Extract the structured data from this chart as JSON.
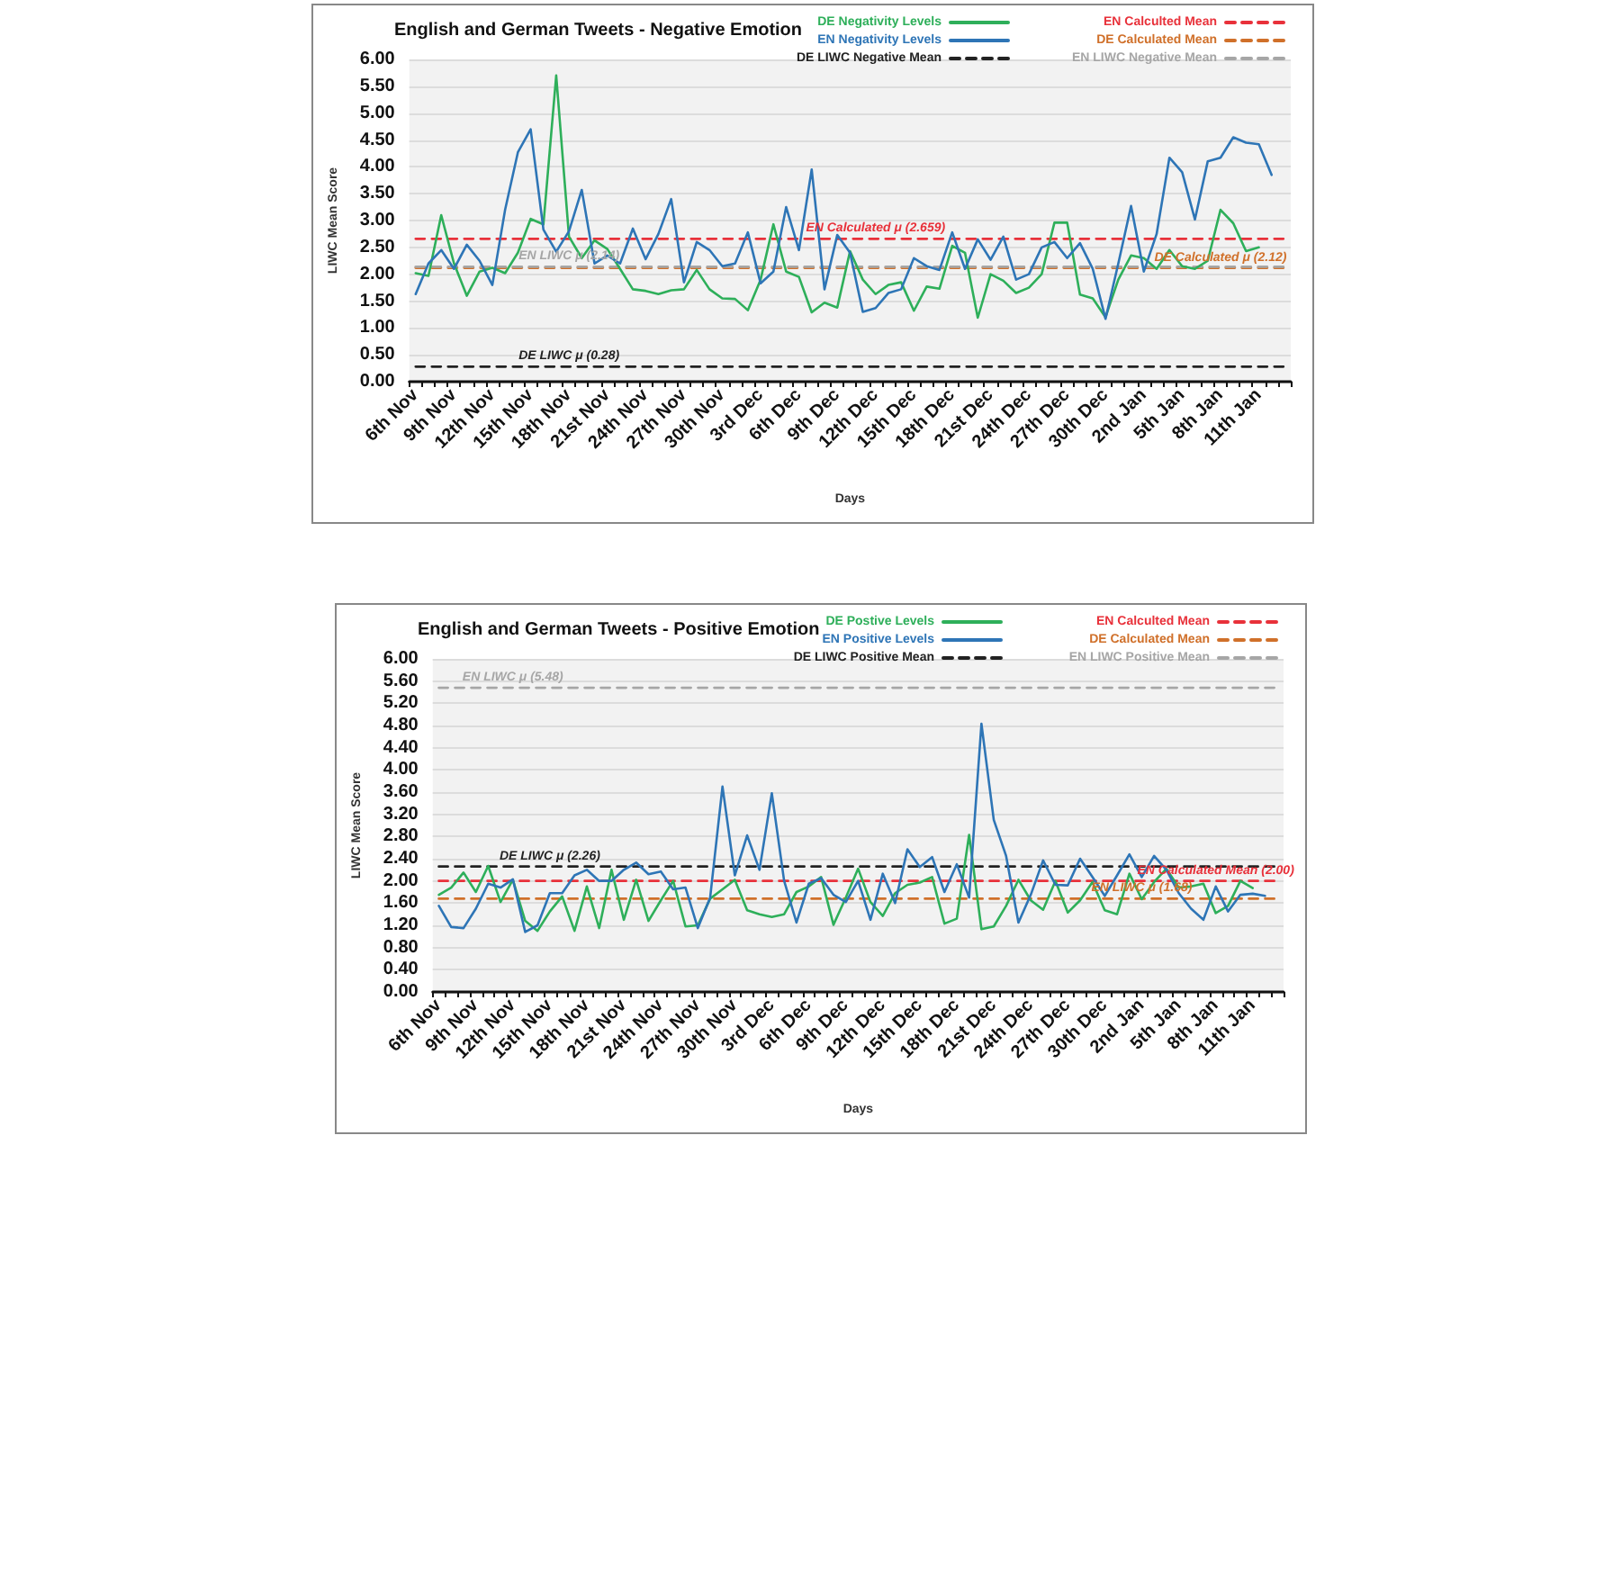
{
  "chart_data": [
    {
      "type": "line",
      "title": "English and German Tweets - Negative Emotion",
      "xlabel": "Days",
      "ylabel": "LIWC Mean Score",
      "categories": [
        "6th Nov",
        null,
        null,
        "9th Nov",
        null,
        null,
        "12th Nov",
        null,
        null,
        "15th Nov",
        null,
        null,
        "18th Nov",
        null,
        null,
        "21st Nov",
        null,
        null,
        "24th Nov",
        null,
        null,
        "27th Nov",
        null,
        null,
        "30th Nov",
        null,
        null,
        "3rd Dec",
        null,
        null,
        "6th Dec",
        null,
        null,
        "9th Dec",
        null,
        null,
        "12th Dec",
        null,
        null,
        "15th Dec",
        null,
        null,
        "18th Dec",
        null,
        null,
        "21st Dec",
        null,
        null,
        "24th Dec",
        null,
        null,
        "27th Dec",
        null,
        null,
        "30th Dec",
        null,
        null,
        "2nd Jan",
        null,
        null,
        "5th Jan",
        null,
        null,
        "8th Jan",
        null,
        null,
        "11th Jan",
        null,
        null
      ],
      "ylim": [
        0,
        6
      ],
      "yticks": [
        {
          "value": 0,
          "label": "0.00"
        },
        {
          "value": 0.5,
          "label": "0.50"
        },
        {
          "value": 1,
          "label": "1.00"
        },
        {
          "value": 1.5,
          "label": "1.50"
        },
        {
          "value": 2,
          "label": "2.00"
        },
        {
          "value": 2.5,
          "label": "2.50"
        },
        {
          "value": 3,
          "label": "3.00"
        },
        {
          "value": 3.5,
          "label": "3.50"
        },
        {
          "value": 4,
          "label": "4.00"
        },
        {
          "value": 4.5,
          "label": "4.50"
        },
        {
          "value": 5,
          "label": "5.00"
        },
        {
          "value": 5.5,
          "label": "5.50"
        },
        {
          "value": 6,
          "label": "6.00"
        }
      ],
      "grid": "y",
      "legend": "top",
      "marker": "none",
      "series": [
        {
          "name": "DE Negativity Levels",
          "color": "#2eaf5a",
          "line_style": "solid",
          "values": [
            2.02,
            1.97,
            3.1,
            2.2,
            1.6,
            2.05,
            2.12,
            2.02,
            2.4,
            3.03,
            2.93,
            5.7,
            2.7,
            2.3,
            2.63,
            2.47,
            2.1,
            1.72,
            1.69,
            1.63,
            1.7,
            1.72,
            2.08,
            1.72,
            1.55,
            1.54,
            1.33,
            1.9,
            2.93,
            2.05,
            1.95,
            1.29,
            1.47,
            1.38,
            2.43,
            1.9,
            1.63,
            1.8,
            1.85,
            1.32,
            1.77,
            1.73,
            2.53,
            2.4,
            1.19,
            2.0,
            1.88,
            1.65,
            1.75,
            2.0,
            2.96,
            2.96,
            1.62,
            1.55,
            1.2,
            1.9,
            2.35,
            2.3,
            2.1,
            2.45,
            2.15,
            2.1,
            2.25,
            3.2,
            2.95,
            2.43,
            2.5,
            null,
            null
          ]
        },
        {
          "name": "EN Negativity Levels",
          "color": "#2e75b6",
          "line_style": "solid",
          "values": [
            1.63,
            2.2,
            2.45,
            2.1,
            2.55,
            2.25,
            1.8,
            3.2,
            4.27,
            4.7,
            2.83,
            2.42,
            2.8,
            3.57,
            2.2,
            2.35,
            2.2,
            2.85,
            2.28,
            2.75,
            3.4,
            1.85,
            2.6,
            2.45,
            2.15,
            2.2,
            2.78,
            1.83,
            2.05,
            3.25,
            2.45,
            3.95,
            1.72,
            2.73,
            2.4,
            1.3,
            1.37,
            1.65,
            1.72,
            2.3,
            2.15,
            2.08,
            2.78,
            2.1,
            2.65,
            2.27,
            2.7,
            1.9,
            2.0,
            2.5,
            2.6,
            2.3,
            2.58,
            2.1,
            1.17,
            2.2,
            3.27,
            2.05,
            2.75,
            4.17,
            3.9,
            3.02,
            4.1,
            4.17,
            4.55,
            4.45,
            4.42,
            3.85,
            null
          ]
        },
        {
          "name": "DE LIWC Negative Mean",
          "color": "#222222",
          "line_style": "dashed",
          "values": [
            0.28,
            0.28,
            0.28,
            0.28,
            0.28,
            0.28,
            0.28,
            0.28,
            0.28,
            0.28,
            0.28,
            0.28,
            0.28,
            0.28,
            0.28,
            0.28,
            0.28,
            0.28,
            0.28,
            0.28,
            0.28,
            0.28,
            0.28,
            0.28,
            0.28,
            0.28,
            0.28,
            0.28,
            0.28,
            0.28,
            0.28,
            0.28,
            0.28,
            0.28,
            0.28,
            0.28,
            0.28,
            0.28,
            0.28,
            0.28,
            0.28,
            0.28,
            0.28,
            0.28,
            0.28,
            0.28,
            0.28,
            0.28,
            0.28,
            0.28,
            0.28,
            0.28,
            0.28,
            0.28,
            0.28,
            0.28,
            0.28,
            0.28,
            0.28,
            0.28,
            0.28,
            0.28,
            0.28,
            0.28,
            0.28,
            0.28,
            0.28,
            0.28,
            0.28
          ]
        },
        {
          "name": "EN Calculted Mean",
          "color": "#e8313a",
          "line_style": "dashed",
          "values": [
            2.659,
            2.659,
            2.659,
            2.659,
            2.659,
            2.659,
            2.659,
            2.659,
            2.659,
            2.659,
            2.659,
            2.659,
            2.659,
            2.659,
            2.659,
            2.659,
            2.659,
            2.659,
            2.659,
            2.659,
            2.659,
            2.659,
            2.659,
            2.659,
            2.659,
            2.659,
            2.659,
            2.659,
            2.659,
            2.659,
            2.659,
            2.659,
            2.659,
            2.659,
            2.659,
            2.659,
            2.659,
            2.659,
            2.659,
            2.659,
            2.659,
            2.659,
            2.659,
            2.659,
            2.659,
            2.659,
            2.659,
            2.659,
            2.659,
            2.659,
            2.659,
            2.659,
            2.659,
            2.659,
            2.659,
            2.659,
            2.659,
            2.659,
            2.659,
            2.659,
            2.659,
            2.659,
            2.659,
            2.659,
            2.659,
            2.659,
            2.659,
            2.659,
            2.659
          ]
        },
        {
          "name": "DE Calculated Mean",
          "color": "#d0702a",
          "line_style": "dashed",
          "values": [
            2.12,
            2.12,
            2.12,
            2.12,
            2.12,
            2.12,
            2.12,
            2.12,
            2.12,
            2.12,
            2.12,
            2.12,
            2.12,
            2.12,
            2.12,
            2.12,
            2.12,
            2.12,
            2.12,
            2.12,
            2.12,
            2.12,
            2.12,
            2.12,
            2.12,
            2.12,
            2.12,
            2.12,
            2.12,
            2.12,
            2.12,
            2.12,
            2.12,
            2.12,
            2.12,
            2.12,
            2.12,
            2.12,
            2.12,
            2.12,
            2.12,
            2.12,
            2.12,
            2.12,
            2.12,
            2.12,
            2.12,
            2.12,
            2.12,
            2.12,
            2.12,
            2.12,
            2.12,
            2.12,
            2.12,
            2.12,
            2.12,
            2.12,
            2.12,
            2.12,
            2.12,
            2.12,
            2.12,
            2.12,
            2.12,
            2.12,
            2.12,
            2.12,
            2.12
          ]
        },
        {
          "name": "EN LIWC Negative Mean",
          "color": "#a6a6a6",
          "line_style": "dashed",
          "values": [
            2.14,
            2.14,
            2.14,
            2.14,
            2.14,
            2.14,
            2.14,
            2.14,
            2.14,
            2.14,
            2.14,
            2.14,
            2.14,
            2.14,
            2.14,
            2.14,
            2.14,
            2.14,
            2.14,
            2.14,
            2.14,
            2.14,
            2.14,
            2.14,
            2.14,
            2.14,
            2.14,
            2.14,
            2.14,
            2.14,
            2.14,
            2.14,
            2.14,
            2.14,
            2.14,
            2.14,
            2.14,
            2.14,
            2.14,
            2.14,
            2.14,
            2.14,
            2.14,
            2.14,
            2.14,
            2.14,
            2.14,
            2.14,
            2.14,
            2.14,
            2.14,
            2.14,
            2.14,
            2.14,
            2.14,
            2.14,
            2.14,
            2.14,
            2.14,
            2.14,
            2.14,
            2.14,
            2.14,
            2.14,
            2.14,
            2.14,
            2.14,
            2.14,
            2.14
          ]
        }
      ],
      "annotations": [
        {
          "text": "EN Calculated μ (2.659)",
          "x": "12th Dec",
          "y": 2.659
        },
        {
          "text": "EN LIWC μ (2.14)",
          "x": "18th Nov",
          "y": 2.14
        },
        {
          "text": "DE Calculated μ (2.12)",
          "x": "8th Jan",
          "y": 2.12
        },
        {
          "text": "DE LIWC μ (0.28)",
          "x": "18th Nov",
          "y": 0.28
        }
      ]
    },
    {
      "type": "line",
      "title": "English and German Tweets - Positive Emotion",
      "xlabel": "Days",
      "ylabel": "LIWC Mean Score",
      "categories": [
        "6th Nov",
        null,
        null,
        "9th Nov",
        null,
        null,
        "12th Nov",
        null,
        null,
        "15th Nov",
        null,
        null,
        "18th Nov",
        null,
        null,
        "21st Nov",
        null,
        null,
        "24th Nov",
        null,
        null,
        "27th Nov",
        null,
        null,
        "30th Nov",
        null,
        null,
        "3rd Dec",
        null,
        null,
        "6th Dec",
        null,
        null,
        "9th Dec",
        null,
        null,
        "12th Dec",
        null,
        null,
        "15th Dec",
        null,
        null,
        "18th Dec",
        null,
        null,
        "21st Dec",
        null,
        null,
        "24th Dec",
        null,
        null,
        "27th Dec",
        null,
        null,
        "30th Dec",
        null,
        null,
        "2nd Jan",
        null,
        null,
        "5th Jan",
        null,
        null,
        "8th Jan",
        null,
        null,
        "11th Jan",
        null,
        null
      ],
      "ylim": [
        0,
        6
      ],
      "yticks": [
        {
          "value": 0,
          "label": "0.00"
        },
        {
          "value": 0.4,
          "label": "0.40"
        },
        {
          "value": 0.8,
          "label": "0.80"
        },
        {
          "value": 1.2,
          "label": "1.20"
        },
        {
          "value": 1.6,
          "label": "1.60"
        },
        {
          "value": 2,
          "label": "2.00"
        },
        {
          "value": 2.4,
          "label": "2.40"
        },
        {
          "value": 2.8,
          "label": "2.80"
        },
        {
          "value": 3.2,
          "label": "3.20"
        },
        {
          "value": 3.6,
          "label": "3.60"
        },
        {
          "value": 4,
          "label": "4.00"
        },
        {
          "value": 4.4,
          "label": "4.40"
        },
        {
          "value": 4.8,
          "label": "4.80"
        },
        {
          "value": 5.2,
          "label": "5.20"
        },
        {
          "value": 5.6,
          "label": "5.60"
        },
        {
          "value": 6,
          "label": "6.00"
        }
      ],
      "grid": "y",
      "legend": "top",
      "marker": "none",
      "series": [
        {
          "name": "DE Postive Levels",
          "color": "#2eaf5a",
          "line_style": "solid",
          "values": [
            1.75,
            1.88,
            2.15,
            1.8,
            2.27,
            1.62,
            2.02,
            1.28,
            1.1,
            1.45,
            1.72,
            1.1,
            1.9,
            1.15,
            2.2,
            1.3,
            2.02,
            1.28,
            1.65,
            2.0,
            1.18,
            1.2,
            1.68,
            1.85,
            2.02,
            1.47,
            1.4,
            1.35,
            1.4,
            1.8,
            1.9,
            2.07,
            1.21,
            1.7,
            2.22,
            1.62,
            1.37,
            1.78,
            1.93,
            1.97,
            2.07,
            1.23,
            1.32,
            2.83,
            1.13,
            1.18,
            1.55,
            2.02,
            1.65,
            1.48,
            2.0,
            1.43,
            1.65,
            1.98,
            1.47,
            1.4,
            2.13,
            1.67,
            1.98,
            2.22,
            1.88,
            1.9,
            1.95,
            1.42,
            1.55,
            2.0,
            1.87,
            null,
            null
          ]
        },
        {
          "name": "EN Positive Levels",
          "color": "#2e75b6",
          "line_style": "solid",
          "values": [
            1.55,
            1.17,
            1.15,
            1.5,
            1.95,
            1.88,
            2.03,
            1.08,
            1.2,
            1.78,
            1.78,
            2.1,
            2.2,
            2.0,
            2.0,
            2.2,
            2.33,
            2.12,
            2.17,
            1.85,
            1.88,
            1.15,
            1.7,
            3.7,
            2.1,
            2.82,
            2.2,
            3.58,
            2.0,
            1.25,
            1.95,
            2.05,
            1.75,
            1.62,
            2.0,
            1.3,
            2.13,
            1.6,
            2.57,
            2.25,
            2.43,
            1.8,
            2.3,
            1.7,
            4.83,
            3.1,
            2.45,
            1.25,
            1.75,
            2.37,
            1.93,
            1.92,
            2.4,
            2.07,
            1.73,
            2.1,
            2.48,
            2.07,
            2.45,
            2.2,
            1.78,
            1.5,
            1.3,
            1.9,
            1.45,
            1.75,
            1.77,
            1.73,
            null
          ]
        },
        {
          "name": "DE LIWC Positive Mean",
          "color": "#222222",
          "line_style": "dashed",
          "values": [
            2.26,
            2.26,
            2.26,
            2.26,
            2.26,
            2.26,
            2.26,
            2.26,
            2.26,
            2.26,
            2.26,
            2.26,
            2.26,
            2.26,
            2.26,
            2.26,
            2.26,
            2.26,
            2.26,
            2.26,
            2.26,
            2.26,
            2.26,
            2.26,
            2.26,
            2.26,
            2.26,
            2.26,
            2.26,
            2.26,
            2.26,
            2.26,
            2.26,
            2.26,
            2.26,
            2.26,
            2.26,
            2.26,
            2.26,
            2.26,
            2.26,
            2.26,
            2.26,
            2.26,
            2.26,
            2.26,
            2.26,
            2.26,
            2.26,
            2.26,
            2.26,
            2.26,
            2.26,
            2.26,
            2.26,
            2.26,
            2.26,
            2.26,
            2.26,
            2.26,
            2.26,
            2.26,
            2.26,
            2.26,
            2.26,
            2.26,
            2.26,
            2.26,
            2.26
          ]
        },
        {
          "name": "EN Calculted Mean",
          "color": "#e8313a",
          "line_style": "dashed",
          "values": [
            2.0,
            2.0,
            2.0,
            2.0,
            2.0,
            2.0,
            2.0,
            2.0,
            2.0,
            2.0,
            2.0,
            2.0,
            2.0,
            2.0,
            2.0,
            2.0,
            2.0,
            2.0,
            2.0,
            2.0,
            2.0,
            2.0,
            2.0,
            2.0,
            2.0,
            2.0,
            2.0,
            2.0,
            2.0,
            2.0,
            2.0,
            2.0,
            2.0,
            2.0,
            2.0,
            2.0,
            2.0,
            2.0,
            2.0,
            2.0,
            2.0,
            2.0,
            2.0,
            2.0,
            2.0,
            2.0,
            2.0,
            2.0,
            2.0,
            2.0,
            2.0,
            2.0,
            2.0,
            2.0,
            2.0,
            2.0,
            2.0,
            2.0,
            2.0,
            2.0,
            2.0,
            2.0,
            2.0,
            2.0,
            2.0,
            2.0,
            2.0,
            2.0,
            2.0
          ]
        },
        {
          "name": "DE Calculated Mean",
          "color": "#d0702a",
          "line_style": "dashed",
          "values": [
            1.68,
            1.68,
            1.68,
            1.68,
            1.68,
            1.68,
            1.68,
            1.68,
            1.68,
            1.68,
            1.68,
            1.68,
            1.68,
            1.68,
            1.68,
            1.68,
            1.68,
            1.68,
            1.68,
            1.68,
            1.68,
            1.68,
            1.68,
            1.68,
            1.68,
            1.68,
            1.68,
            1.68,
            1.68,
            1.68,
            1.68,
            1.68,
            1.68,
            1.68,
            1.68,
            1.68,
            1.68,
            1.68,
            1.68,
            1.68,
            1.68,
            1.68,
            1.68,
            1.68,
            1.68,
            1.68,
            1.68,
            1.68,
            1.68,
            1.68,
            1.68,
            1.68,
            1.68,
            1.68,
            1.68,
            1.68,
            1.68,
            1.68,
            1.68,
            1.68,
            1.68,
            1.68,
            1.68,
            1.68,
            1.68,
            1.68,
            1.68,
            1.68,
            1.68
          ]
        },
        {
          "name": "EN LIWC Positive Mean",
          "color": "#a6a6a6",
          "line_style": "dashed",
          "values": [
            5.48,
            5.48,
            5.48,
            5.48,
            5.48,
            5.48,
            5.48,
            5.48,
            5.48,
            5.48,
            5.48,
            5.48,
            5.48,
            5.48,
            5.48,
            5.48,
            5.48,
            5.48,
            5.48,
            5.48,
            5.48,
            5.48,
            5.48,
            5.48,
            5.48,
            5.48,
            5.48,
            5.48,
            5.48,
            5.48,
            5.48,
            5.48,
            5.48,
            5.48,
            5.48,
            5.48,
            5.48,
            5.48,
            5.48,
            5.48,
            5.48,
            5.48,
            5.48,
            5.48,
            5.48,
            5.48,
            5.48,
            5.48,
            5.48,
            5.48,
            5.48,
            5.48,
            5.48,
            5.48,
            5.48,
            5.48,
            5.48,
            5.48,
            5.48,
            5.48,
            5.48,
            5.48,
            5.48,
            5.48,
            5.48,
            5.48,
            5.48,
            5.48,
            5.48
          ]
        }
      ],
      "annotations": [
        {
          "text": "EN LIWC μ (5.48)",
          "x": "12th Nov",
          "y": 5.48
        },
        {
          "text": "DE LIWC μ (2.26)",
          "x": "15th Nov",
          "y": 2.26
        },
        {
          "text": "EN Calculated Mean (2.00)",
          "x": "8th Jan",
          "y": 2.0
        },
        {
          "text": "EN LIWC μ (1.68)",
          "x": "2nd Jan",
          "y": 1.68
        }
      ]
    }
  ]
}
